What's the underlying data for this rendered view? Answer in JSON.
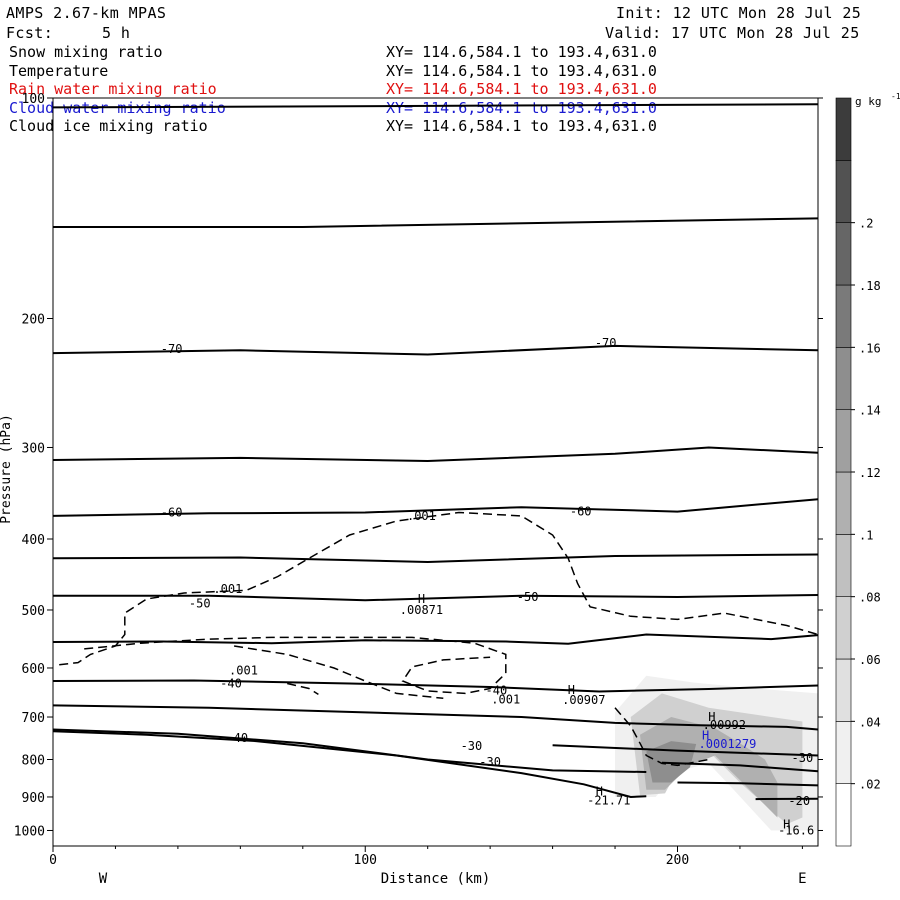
{
  "header": {
    "model": "AMPS 2.67-km MPAS",
    "fcst_label": "Fcst:",
    "fcst_value": "5 h",
    "init": "Init: 12 UTC Mon 28 Jul 25",
    "valid": "Valid: 17 UTC Mon 28 Jul 25"
  },
  "fields": [
    {
      "name": "Snow mixing ratio",
      "xy": "XY= 114.6,584.1 to 193.4,631.0",
      "color": "#000000"
    },
    {
      "name": "Temperature",
      "xy": "XY= 114.6,584.1 to 193.4,631.0",
      "color": "#000000"
    },
    {
      "name": "Rain water mixing ratio",
      "xy": "XY= 114.6,584.1 to 193.4,631.0",
      "color": "#e01010"
    },
    {
      "name": "Cloud water mixing ratio",
      "xy": "XY= 114.6,584.1 to 193.4,631.0",
      "color": "#1a1ad0"
    },
    {
      "name": "Cloud ice mixing ratio",
      "xy": "XY= 114.6,584.1 to 193.4,631.0",
      "color": "#000000"
    }
  ],
  "chart_data": {
    "type": "contour-cross-section",
    "xlabel": "Distance (km)",
    "ylabel": "Pressure (hPa)",
    "xlim": [
      0,
      245
    ],
    "ylim": [
      1050,
      100
    ],
    "y_log": true,
    "x_ticks": [
      0,
      100,
      200
    ],
    "x_tick_labels": [
      "0",
      "100",
      "200"
    ],
    "y_ticks": [
      100,
      200,
      300,
      400,
      500,
      600,
      700,
      800,
      900,
      1000
    ],
    "y_tick_labels": [
      "100",
      "200",
      "300",
      "400",
      "500",
      "600",
      "700",
      "800",
      "900",
      "1000"
    ],
    "x_end_labels": {
      "left": "W",
      "right": "E"
    },
    "colorbar": {
      "units": "g kg",
      "units_exp": "-1",
      "tick_labels": [
        ".02",
        ".04",
        ".06",
        ".08",
        ".1",
        ".12",
        ".14",
        ".16",
        ".18",
        ".2"
      ],
      "tick_values": [
        0.02,
        0.04,
        0.06,
        0.08,
        0.1,
        0.12,
        0.14,
        0.16,
        0.18,
        0.2
      ],
      "shades": [
        "#ffffff",
        "#f0f0f0",
        "#e0e0e0",
        "#d0d0d0",
        "#c0c0c0",
        "#b0b0b0",
        "#a0a0a0",
        "#8e8e8e",
        "#7a7a7a",
        "#666666",
        "#525252",
        "#3c3c3c"
      ]
    },
    "temperature_labels": [
      {
        "text": "-70",
        "x": 38,
        "p": 220
      },
      {
        "text": "-70",
        "x": 177,
        "p": 216
      },
      {
        "text": "-60",
        "x": 38,
        "p": 368
      },
      {
        "text": "-60",
        "x": 169,
        "p": 367
      },
      {
        "text": "-50",
        "x": 47,
        "p": 490
      },
      {
        "text": "-50",
        "x": 152,
        "p": 480
      },
      {
        "text": "-40",
        "x": 57,
        "p": 630
      },
      {
        "text": "-40",
        "x": 142,
        "p": 644
      },
      {
        "text": "-40",
        "x": 59,
        "p": 748
      },
      {
        "text": "-30",
        "x": 134,
        "p": 767
      },
      {
        "text": "-30",
        "x": 140,
        "p": 806
      },
      {
        "text": "-30",
        "x": 240,
        "p": 796
      },
      {
        "text": "-20",
        "x": 239,
        "p": 912
      },
      {
        "text": "-16.6",
        "x": 238,
        "p": 1000
      },
      {
        "text": "-21.71",
        "x": 178,
        "p": 910
      }
    ],
    "mixing_ratio_labels": [
      {
        "text": ".001",
        "x": 118,
        "p": 372,
        "field": "snow"
      },
      {
        "text": ".001",
        "x": 56,
        "p": 468,
        "field": "snow"
      },
      {
        "text": ".001",
        "x": 61,
        "p": 605,
        "field": "snow"
      },
      {
        "text": ".001",
        "x": 145,
        "p": 663,
        "field": "snow"
      },
      {
        "text": ".00871",
        "x": 118,
        "p": 500,
        "field": "snow"
      },
      {
        "text": ".00907",
        "x": 170,
        "p": 664,
        "field": "snow"
      },
      {
        "text": ".00992",
        "x": 215,
        "p": 718,
        "field": "snow"
      },
      {
        "text": ".0001279",
        "x": 216,
        "p": 762,
        "field": "cloud_water"
      }
    ],
    "maxima_markers": [
      {
        "text": "H",
        "x": 118,
        "p": 483
      },
      {
        "text": "H",
        "x": 166,
        "p": 643
      },
      {
        "text": "H",
        "x": 211,
        "p": 700
      },
      {
        "text": "H",
        "x": 209,
        "p": 742
      },
      {
        "text": "H",
        "x": 175,
        "p": 885
      },
      {
        "text": "H",
        "x": 235,
        "p": 982
      }
    ],
    "temperature_contours": [
      [
        [
          0,
          103
        ],
        [
          245,
          102
        ]
      ],
      [
        [
          0,
          150
        ],
        [
          80,
          150
        ],
        [
          160,
          148
        ],
        [
          245,
          146
        ]
      ],
      [
        [
          0,
          223
        ],
        [
          60,
          221
        ],
        [
          120,
          224
        ],
        [
          180,
          218
        ],
        [
          245,
          221
        ]
      ],
      [
        [
          0,
          312
        ],
        [
          60,
          310
        ],
        [
          120,
          313
        ],
        [
          180,
          306
        ],
        [
          210,
          300
        ],
        [
          245,
          305
        ]
      ],
      [
        [
          0,
          372
        ],
        [
          50,
          369
        ],
        [
          100,
          368
        ],
        [
          150,
          362
        ],
        [
          200,
          367
        ],
        [
          245,
          353
        ]
      ],
      [
        [
          0,
          425
        ],
        [
          60,
          424
        ],
        [
          120,
          430
        ],
        [
          180,
          422
        ],
        [
          245,
          420
        ]
      ],
      [
        [
          0,
          478
        ],
        [
          50,
          478
        ],
        [
          100,
          485
        ],
        [
          150,
          478
        ],
        [
          200,
          480
        ],
        [
          245,
          477
        ]
      ],
      [
        [
          0,
          553
        ],
        [
          35,
          552
        ],
        [
          70,
          555
        ],
        [
          100,
          550
        ],
        [
          145,
          552
        ],
        [
          165,
          556
        ],
        [
          190,
          540
        ],
        [
          230,
          548
        ],
        [
          245,
          541
        ]
      ],
      [
        [
          0,
          625
        ],
        [
          45,
          624
        ],
        [
          95,
          630
        ],
        [
          140,
          637
        ],
        [
          175,
          646
        ],
        [
          210,
          641
        ],
        [
          245,
          634
        ]
      ],
      [
        [
          0,
          675
        ],
        [
          50,
          680
        ],
        [
          100,
          690
        ],
        [
          150,
          700
        ],
        [
          180,
          713
        ],
        [
          205,
          718
        ],
        [
          235,
          722
        ],
        [
          245,
          728
        ]
      ],
      [
        [
          0,
          732
        ],
        [
          30,
          740
        ],
        [
          65,
          755
        ],
        [
          110,
          790
        ],
        [
          150,
          835
        ],
        [
          170,
          865
        ],
        [
          185,
          900
        ],
        [
          190,
          898
        ]
      ],
      [
        [
          0,
          728
        ],
        [
          40,
          738
        ],
        [
          80,
          760
        ],
        [
          120,
          800
        ],
        [
          160,
          828
        ],
        [
          190,
          832
        ]
      ],
      [
        [
          160,
          765
        ],
        [
          200,
          778
        ],
        [
          245,
          790
        ]
      ],
      [
        [
          195,
          808
        ],
        [
          220,
          815
        ],
        [
          245,
          830
        ]
      ],
      [
        [
          200,
          860
        ],
        [
          220,
          862
        ],
        [
          245,
          868
        ]
      ],
      [
        [
          225,
          906
        ],
        [
          245,
          905
        ]
      ]
    ],
    "snow_contour_dashed": [
      [
        [
          2,
          594
        ],
        [
          8,
          590
        ],
        [
          12,
          575
        ],
        [
          20,
          560
        ],
        [
          23,
          540
        ],
        [
          23,
          505
        ],
        [
          30,
          483
        ],
        [
          42,
          474
        ],
        [
          62,
          470
        ],
        [
          72,
          450
        ],
        [
          82,
          425
        ],
        [
          95,
          395
        ],
        [
          110,
          378
        ],
        [
          130,
          368
        ],
        [
          150,
          372
        ],
        [
          160,
          395
        ],
        [
          165,
          425
        ],
        [
          168,
          460
        ],
        [
          172,
          495
        ],
        [
          185,
          510
        ],
        [
          200,
          515
        ],
        [
          215,
          505
        ],
        [
          235,
          525
        ],
        [
          245,
          540
        ]
      ],
      [
        [
          10,
          565
        ],
        [
          28,
          555
        ],
        [
          50,
          548
        ],
        [
          70,
          545
        ],
        [
          90,
          545
        ],
        [
          115,
          545
        ],
        [
          135,
          555
        ],
        [
          145,
          575
        ],
        [
          145,
          610
        ],
        [
          140,
          640
        ],
        [
          132,
          650
        ],
        [
          120,
          645
        ],
        [
          112,
          625
        ],
        [
          115,
          598
        ],
        [
          125,
          585
        ],
        [
          140,
          580
        ]
      ],
      [
        [
          58,
          560
        ],
        [
          75,
          575
        ],
        [
          90,
          600
        ],
        [
          100,
          625
        ],
        [
          110,
          650
        ],
        [
          125,
          660
        ]
      ],
      [
        [
          180,
          680
        ],
        [
          185,
          720
        ],
        [
          188,
          760
        ],
        [
          190,
          790
        ],
        [
          195,
          810
        ],
        [
          200,
          815
        ],
        [
          210,
          800
        ]
      ],
      [
        [
          75,
          630
        ],
        [
          82,
          640
        ],
        [
          85,
          652
        ]
      ]
    ],
    "shaded_regions": [
      {
        "value": 0.02,
        "poly": [
          [
            180,
            690
          ],
          [
            190,
            615
          ],
          [
            205,
            628
          ],
          [
            225,
            640
          ],
          [
            245,
            650
          ],
          [
            245,
            1000
          ],
          [
            230,
            1000
          ],
          [
            218,
            880
          ],
          [
            210,
            810
          ],
          [
            200,
            830
          ],
          [
            193,
            900
          ],
          [
            180,
            900
          ]
        ]
      },
      {
        "value": 0.06,
        "poly": [
          [
            185,
            700
          ],
          [
            195,
            650
          ],
          [
            210,
            680
          ],
          [
            230,
            700
          ],
          [
            240,
            710
          ],
          [
            240,
            960
          ],
          [
            235,
            980
          ],
          [
            220,
            860
          ],
          [
            210,
            780
          ],
          [
            202,
            800
          ],
          [
            196,
            890
          ],
          [
            188,
            895
          ]
        ]
      },
      {
        "value": 0.1,
        "poly": [
          [
            188,
            740
          ],
          [
            198,
            700
          ],
          [
            212,
            725
          ],
          [
            220,
            760
          ],
          [
            228,
            800
          ],
          [
            232,
            860
          ],
          [
            232,
            960
          ],
          [
            222,
            870
          ],
          [
            212,
            790
          ],
          [
            204,
            815
          ],
          [
            196,
            880
          ],
          [
            190,
            880
          ]
        ]
      },
      {
        "value": 0.14,
        "poly": [
          [
            190,
            780
          ],
          [
            198,
            755
          ],
          [
            206,
            762
          ],
          [
            204,
            820
          ],
          [
            198,
            860
          ],
          [
            192,
            860
          ]
        ]
      }
    ]
  }
}
